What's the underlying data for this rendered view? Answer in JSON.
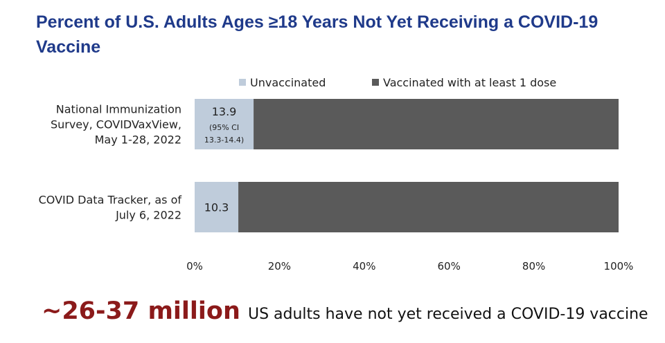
{
  "chart_data": {
    "type": "bar",
    "orientation": "horizontal",
    "stacked": true,
    "title": "Percent of U.S. Adults Ages ≥18 Years Not Yet Receiving a COVID-19 Vaccine",
    "categories": [
      [
        "National Immunization",
        "Survey, COVIDVaxView,",
        "May 1-28, 2022"
      ],
      [
        "COVID Data Tracker, as of",
        "July 6, 2022"
      ]
    ],
    "series": [
      {
        "name": "Unvaccinated",
        "values": [
          13.9,
          10.3
        ],
        "color": "#bfccdb"
      },
      {
        "name": "Vaccinated with at least 1 dose",
        "values": [
          86.1,
          89.7
        ],
        "color": "#5a5a5a"
      }
    ],
    "data_labels": [
      {
        "value": "13.9",
        "note": [
          "(95% CI",
          "13.3-14.4)"
        ]
      },
      {
        "value": "10.3",
        "note": []
      }
    ],
    "xlim": [
      0,
      100
    ],
    "xticks": [
      "0%",
      "20%",
      "40%",
      "60%",
      "80%",
      "100%"
    ],
    "legend_position": "top"
  },
  "footer": {
    "highlight": "~26-37 million",
    "text": "US adults have not yet received a COVID-19 vaccine"
  }
}
